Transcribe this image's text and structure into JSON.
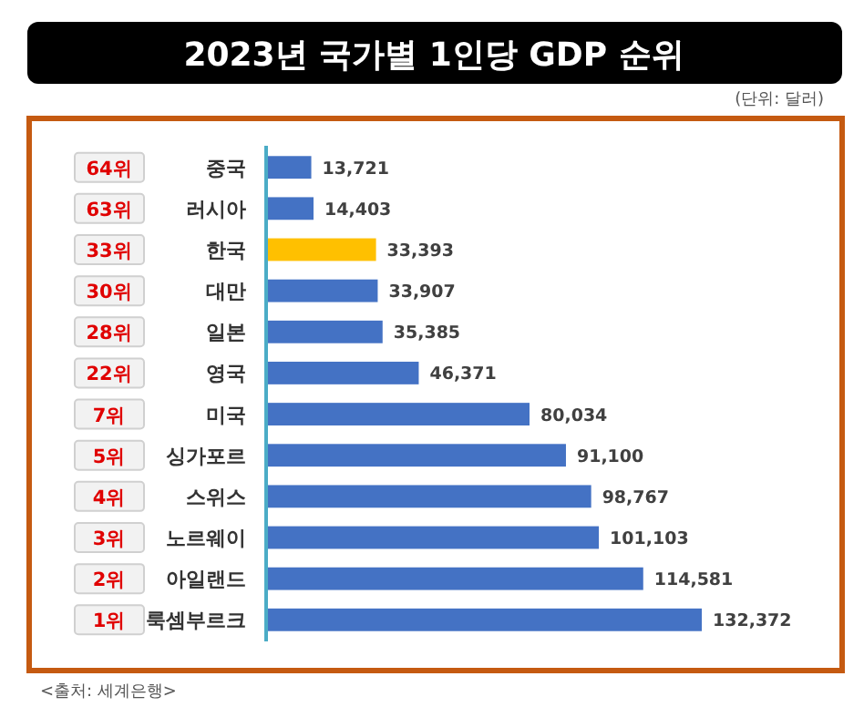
{
  "chart_data": {
    "type": "bar",
    "orientation": "horizontal",
    "title": "2023년 국가별 1인당 GDP 순위",
    "categories": [
      "중국",
      "러시아",
      "한국",
      "대만",
      "일본",
      "영국",
      "미국",
      "싱가포르",
      "스위스",
      "노르웨이",
      "아일랜드",
      "룩셈부르크"
    ],
    "values": [
      13721,
      14403,
      33393,
      33907,
      35385,
      46371,
      80034,
      91100,
      98767,
      101103,
      114581,
      132372
    ],
    "colors": [
      "#4472c4",
      "#4472c4",
      "#ffc000",
      "#4472c4",
      "#4472c4",
      "#4472c4",
      "#4472c4",
      "#4472c4",
      "#4472c4",
      "#4472c4",
      "#4472c4",
      "#4472c4"
    ],
    "value_labels": [
      "13,721",
      "14,403",
      "33,393",
      "33,907",
      "35,385",
      "46,371",
      "80,034",
      "91,100",
      "98,767",
      "101,103",
      "114,581",
      "132,372"
    ],
    "annotations": [
      "(단위: 달러)",
      "<출처: 세계은행>",
      "64위",
      "63위",
      "33위",
      "30위",
      "28위",
      "22위",
      "7위",
      "5위",
      "4위",
      "3위",
      "2위",
      "1위"
    ]
  }
}
